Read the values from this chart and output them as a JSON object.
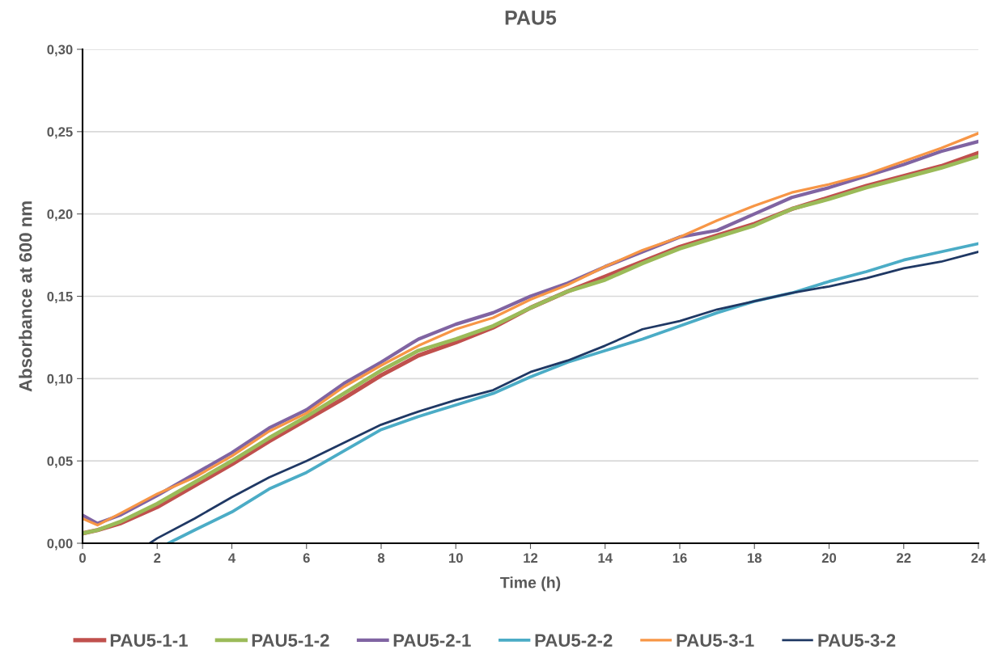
{
  "chart_data": {
    "type": "line",
    "title": "PAU5",
    "xlabel": "Time (h)",
    "ylabel": "Absorbance at 600 nm",
    "x": [
      0,
      0.4,
      1,
      2,
      3,
      4,
      5,
      6,
      7,
      8,
      9,
      10,
      11,
      12,
      13,
      14,
      15,
      16,
      17,
      18,
      19,
      20,
      21,
      22,
      23,
      24
    ],
    "series": [
      {
        "name": "PAU5-1-1",
        "color": "#c0504d",
        "values": [
          0.006,
          0.008,
          0.012,
          0.022,
          0.035,
          0.048,
          0.062,
          0.075,
          0.088,
          0.102,
          0.114,
          0.122,
          0.131,
          0.143,
          0.153,
          0.162,
          0.171,
          0.18,
          0.187,
          0.194,
          0.203,
          0.21,
          0.217,
          0.223,
          0.229,
          0.237
        ]
      },
      {
        "name": "PAU5-1-2",
        "color": "#9bbb59",
        "values": [
          0.006,
          0.008,
          0.013,
          0.024,
          0.037,
          0.05,
          0.064,
          0.077,
          0.091,
          0.105,
          0.117,
          0.124,
          0.132,
          0.143,
          0.153,
          0.16,
          0.17,
          0.179,
          0.186,
          0.193,
          0.203,
          0.209,
          0.216,
          0.222,
          0.228,
          0.235
        ]
      },
      {
        "name": "PAU5-2-1",
        "color": "#8064a2",
        "values": [
          0.017,
          0.012,
          0.017,
          0.029,
          0.042,
          0.055,
          0.07,
          0.081,
          0.097,
          0.11,
          0.124,
          0.133,
          0.14,
          0.15,
          0.158,
          0.168,
          0.177,
          0.186,
          0.19,
          0.2,
          0.21,
          0.216,
          0.223,
          0.23,
          0.238,
          0.244
        ]
      },
      {
        "name": "PAU5-2-2",
        "color": "#4bacc6",
        "x": [
          2.3,
          3,
          4,
          5,
          6,
          7,
          8,
          9,
          10,
          11,
          12,
          13,
          14,
          15,
          16,
          17,
          18,
          19,
          20,
          21,
          22,
          23,
          24
        ],
        "values": [
          0.0,
          0.008,
          0.019,
          0.033,
          0.043,
          0.056,
          0.069,
          0.077,
          0.084,
          0.091,
          0.101,
          0.11,
          0.117,
          0.124,
          0.132,
          0.14,
          0.147,
          0.152,
          0.159,
          0.165,
          0.172,
          0.177,
          0.182
        ]
      },
      {
        "name": "PAU5-3-1",
        "color": "#f79646",
        "values": [
          0.015,
          0.011,
          0.018,
          0.03,
          0.04,
          0.053,
          0.068,
          0.079,
          0.095,
          0.108,
          0.12,
          0.13,
          0.137,
          0.148,
          0.157,
          0.168,
          0.178,
          0.186,
          0.196,
          0.205,
          0.213,
          0.218,
          0.224,
          0.232,
          0.24,
          0.249
        ]
      },
      {
        "name": "PAU5-3-2",
        "color": "#1f3864",
        "x": [
          1.8,
          2,
          3,
          4,
          5,
          6,
          7,
          8,
          9,
          10,
          11,
          12,
          13,
          14,
          15,
          16,
          17,
          18,
          19,
          20,
          21,
          22,
          23,
          24
        ],
        "values": [
          0.0,
          0.003,
          0.015,
          0.028,
          0.04,
          0.05,
          0.061,
          0.072,
          0.08,
          0.087,
          0.093,
          0.104,
          0.111,
          0.12,
          0.13,
          0.135,
          0.142,
          0.147,
          0.152,
          0.156,
          0.161,
          0.167,
          0.171,
          0.177
        ]
      }
    ],
    "xlim": [
      0,
      24
    ],
    "xticks": [
      0,
      2,
      4,
      6,
      8,
      10,
      12,
      14,
      16,
      18,
      20,
      22,
      24
    ],
    "ylim": [
      0,
      0.3
    ],
    "yticks": [
      {
        "value": 0,
        "label": "0,00"
      },
      {
        "value": 0.05,
        "label": "0,05"
      },
      {
        "value": 0.1,
        "label": "0,10"
      },
      {
        "value": 0.15,
        "label": "0,15"
      },
      {
        "value": 0.2,
        "label": "0,20"
      },
      {
        "value": 0.25,
        "label": "0,25"
      },
      {
        "value": 0.3,
        "label": "0,30"
      }
    ],
    "grid": "y",
    "legend": "bottom",
    "marker": "none",
    "line_style": "solid"
  }
}
